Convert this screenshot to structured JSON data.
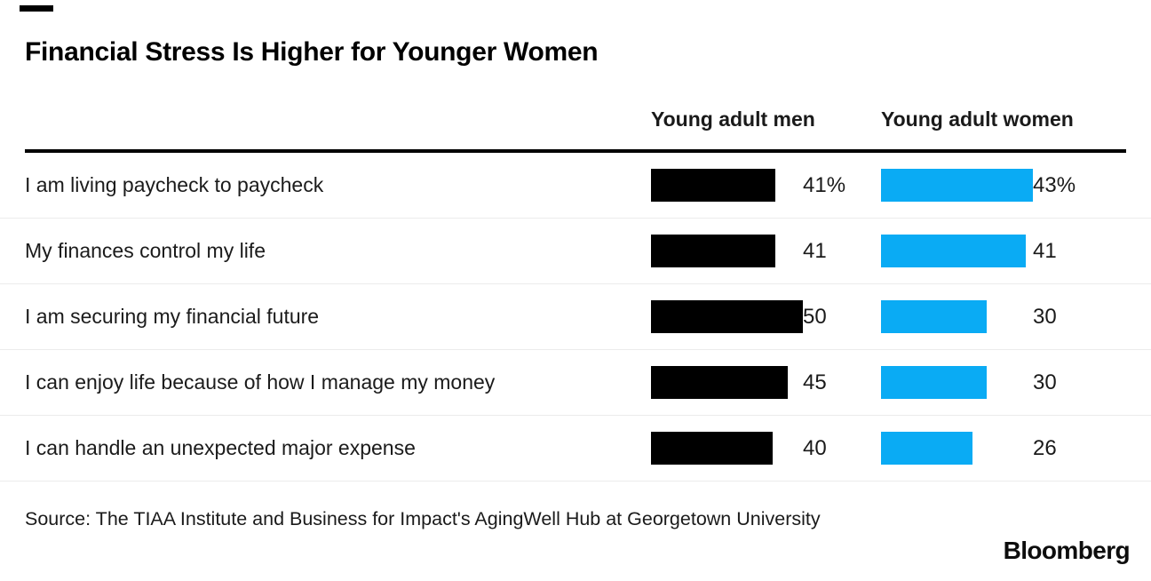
{
  "header": {
    "title": "Financial Stress Is Higher for Younger Women",
    "col_men": "Young adult men",
    "col_women": "Young adult women"
  },
  "colors": {
    "men_bar": "#000000",
    "women_bar": "#0aabf4",
    "rule": "#000000",
    "divider": "#ececec"
  },
  "chart_data": {
    "type": "bar",
    "orientation": "horizontal",
    "title": "Financial Stress Is Higher for Younger Women",
    "categories": [
      "I am living paycheck to paycheck",
      "My finances control my life",
      "I am securing my financial future",
      "I can enjoy life because of how I manage my money",
      "I can handle an unexpected major expense"
    ],
    "series": [
      {
        "name": "Young adult men",
        "values": [
          41,
          41,
          50,
          45,
          40
        ],
        "color": "#000000"
      },
      {
        "name": "Young adult women",
        "values": [
          43,
          41,
          30,
          30,
          26
        ],
        "color": "#0aabf4"
      }
    ],
    "unit": "percent",
    "legend_position": "column headers above table",
    "grid": false,
    "scales": {
      "men_max": 50,
      "women_max": 43
    },
    "rows": [
      {
        "label": "I am living paycheck to paycheck",
        "men": 41,
        "men_display": "41%",
        "women": 43,
        "women_display": "43%"
      },
      {
        "label": "My finances control my life",
        "men": 41,
        "men_display": "41",
        "women": 41,
        "women_display": "41"
      },
      {
        "label": "I am securing my financial future",
        "men": 50,
        "men_display": "50",
        "women": 30,
        "women_display": "30"
      },
      {
        "label": "I can enjoy life because of how I manage my money",
        "men": 45,
        "men_display": "45",
        "women": 30,
        "women_display": "30"
      },
      {
        "label": "I can handle an unexpected major expense",
        "men": 40,
        "men_display": "40",
        "women": 26,
        "women_display": "26"
      }
    ]
  },
  "footer": {
    "source": "Source: The TIAA Institute and Business for Impact's AgingWell Hub at Georgetown University",
    "brand": "Bloomberg"
  }
}
